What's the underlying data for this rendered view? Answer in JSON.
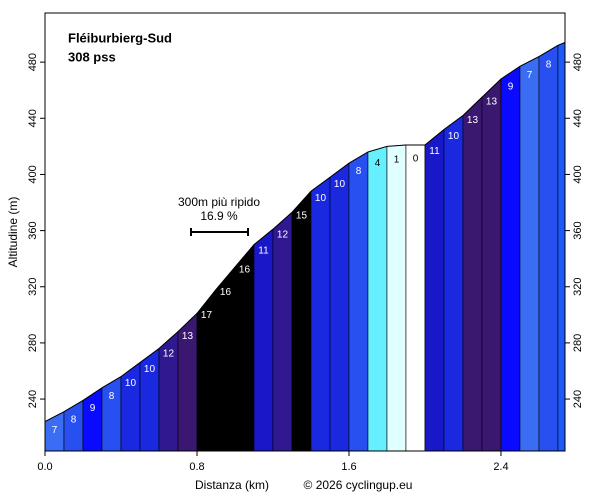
{
  "chart_data": {
    "type": "profile",
    "title": "Fléiburbierg-Sud",
    "subtitle": "308 pss",
    "x_label": "Distanza (km)",
    "y_label": "Altitudine (m)",
    "credit": "© 2026 cyclingup.eu",
    "annotation": {
      "text": "300m più ripido",
      "value_label": "16.9 %"
    },
    "x": [
      0,
      0.1,
      0.2,
      0.3,
      0.4,
      0.5,
      0.6,
      0.7,
      0.8,
      0.9,
      1.0,
      1.1,
      1.2,
      1.3,
      1.4,
      1.5,
      1.6,
      1.7,
      1.8,
      1.9,
      2.0,
      2.1,
      2.2,
      2.3,
      2.4,
      2.5,
      2.6,
      2.7,
      2.737
    ],
    "elevations": [
      224,
      231,
      239,
      248,
      256,
      266,
      276,
      288,
      301,
      318,
      334,
      350,
      361,
      373,
      388,
      398,
      408,
      416,
      420,
      421,
      421,
      432,
      442,
      455,
      468,
      477,
      484,
      492,
      494
    ],
    "gradients": [
      7,
      8,
      9,
      8,
      10,
      10,
      12,
      13,
      17,
      16,
      16,
      11,
      12,
      15,
      10,
      10,
      8,
      4,
      1,
      0,
      11,
      10,
      13,
      13,
      9,
      7,
      8,
      null
    ],
    "colors": [
      "#3a6cf4",
      "#2850f0",
      "#0a0aff",
      "#2850f0",
      "#1a28e0",
      "#1a28e0",
      "#301890",
      "#3a1870",
      "#000000",
      "#000000",
      "#000000",
      "#1818c8",
      "#301890",
      "#000000",
      "#1a28e0",
      "#1a28e0",
      "#2850f0",
      "#66f0ff",
      "#e0ffff",
      "#ffffff",
      "#1818c8",
      "#1a28e0",
      "#3a1870",
      "#3a1870",
      "#0a0aff",
      "#3a6cf4",
      "#2850f0",
      "#1e5af8"
    ],
    "xlim": [
      0,
      2.737
    ],
    "ylim": [
      203,
      515
    ],
    "xticks": [
      {
        "value": 0,
        "label": "0.0"
      },
      0.8,
      1.6,
      2.4
    ],
    "yticks": [
      240,
      280,
      320,
      360,
      400,
      440,
      480
    ]
  }
}
